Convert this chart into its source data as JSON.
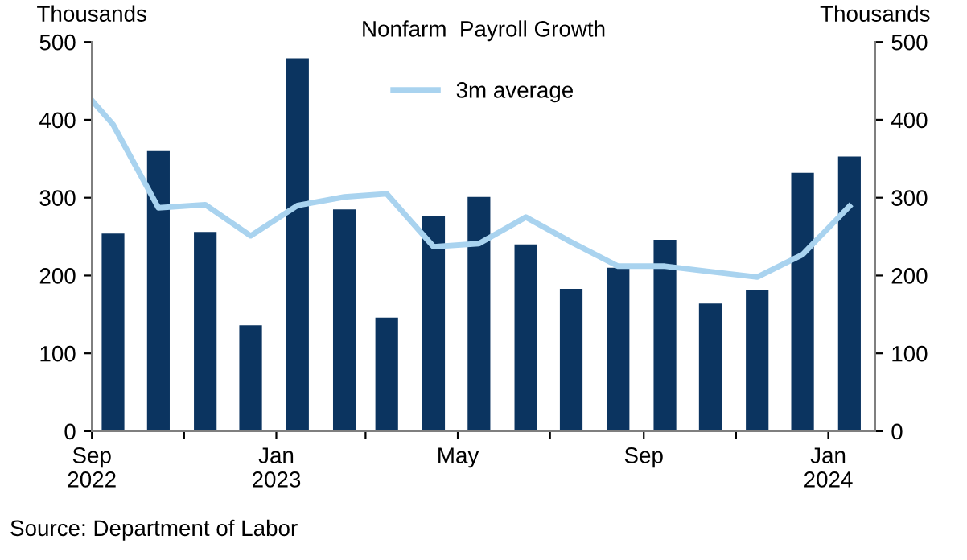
{
  "chart_data": {
    "type": "bar",
    "title": "Nonfarm  Payroll Growth",
    "ylabel": "Thousands",
    "y2label": "Thousands",
    "x": [
      "2022-09-15",
      "2022-10-15",
      "2022-11-15",
      "2022-12-15",
      "2023-01-15",
      "2023-02-15",
      "2023-03-15",
      "2023-04-15",
      "2023-05-15",
      "2023-06-15",
      "2023-07-15",
      "2023-08-15",
      "2023-09-15",
      "2023-10-15",
      "2023-11-15",
      "2023-12-15",
      "2024-01-15"
    ],
    "series": [
      {
        "color": "#0b3460",
        "values": [
          254,
          360,
          256,
          136,
          479,
          285,
          146,
          277,
          301,
          240,
          183,
          210,
          246,
          164,
          181,
          332,
          353
        ]
      },
      {
        "type": "line",
        "name": "3m average",
        "color": "#a9d3ef",
        "x": [
          "2022-09-01",
          "2022-09-15",
          "2022-10-15",
          "2022-11-15",
          "2022-12-15",
          "2023-01-15",
          "2023-02-15",
          "2023-03-15",
          "2023-04-15",
          "2023-05-15",
          "2023-06-15",
          "2023-07-15",
          "2023-08-15",
          "2023-09-15",
          "2023-10-15",
          "2023-11-15",
          "2023-12-15",
          "2024-01-15"
        ],
        "values": [
          425,
          394,
          287,
          291,
          251,
          290,
          301,
          305,
          237,
          241,
          275,
          243,
          212,
          212,
          205,
          198,
          227,
          289
        ]
      }
    ],
    "xlim": [
      "2022-09-01",
      "2024-02-01"
    ],
    "xticks": [
      {
        "value": "2022-09-01",
        "label": "Sep\n2022"
      },
      {
        "value": "2022-11-01",
        "label": null
      },
      {
        "value": "2023-01-01",
        "label": "Jan\n2023"
      },
      {
        "value": "2023-03-01",
        "label": null
      },
      {
        "value": "2023-05-01",
        "label": "May"
      },
      {
        "value": "2023-07-01",
        "label": null
      },
      {
        "value": "2023-09-01",
        "label": "Sep"
      },
      {
        "value": "2023-11-01",
        "label": null
      },
      {
        "value": "2024-01-01",
        "label": "Jan\n2024"
      }
    ],
    "ylim": [
      0,
      500
    ],
    "yticks": [
      0,
      100,
      200,
      300,
      400,
      500
    ],
    "y2lim": [
      0,
      500
    ],
    "y2ticks": [
      0,
      100,
      200,
      300,
      400,
      500
    ],
    "grid": false,
    "legend": "top",
    "marker": "none",
    "line_style": "solid",
    "annotations": [
      "Source: Department of Labor"
    ]
  }
}
